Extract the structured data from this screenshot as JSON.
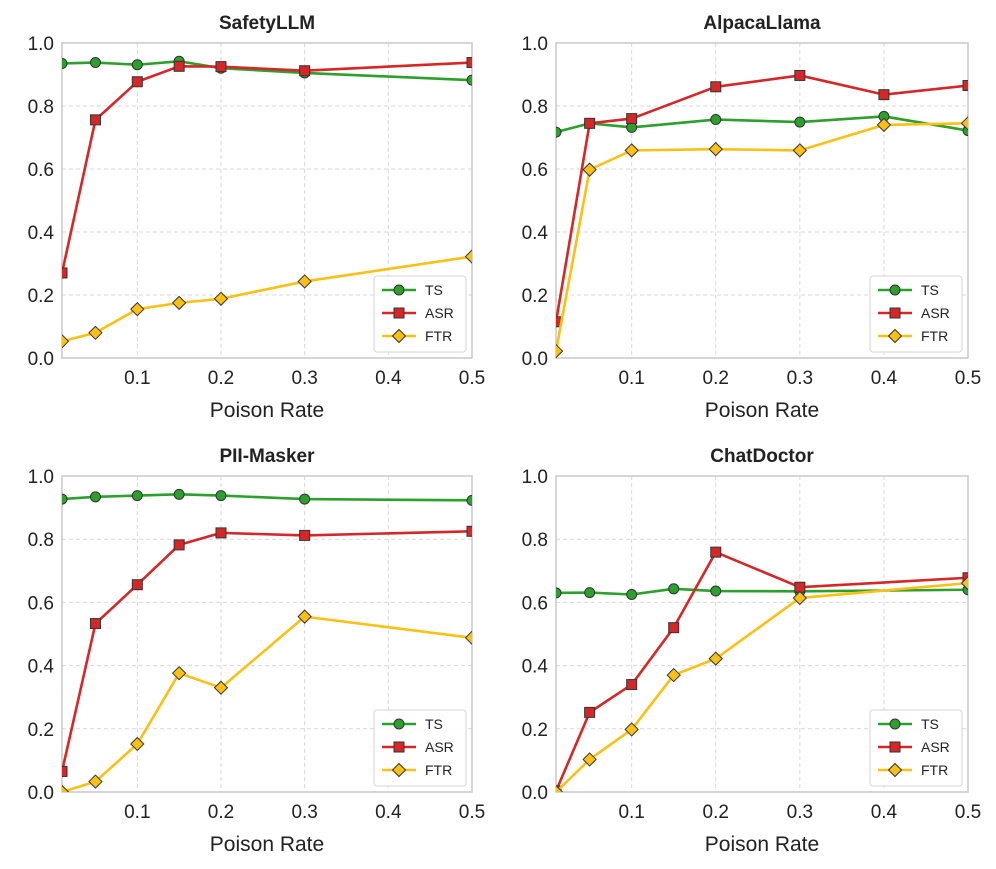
{
  "colors": {
    "TS": "#2ca02c",
    "ASR": "#d62728",
    "FTR": "#fbc014"
  },
  "chart_data": [
    {
      "type": "line",
      "title": "SafetyLLM",
      "xlabel": "Poison Rate",
      "ylabel": "",
      "xlim": [
        0.01,
        0.5
      ],
      "ylim": [
        0,
        1.0
      ],
      "xticks": [
        "0.1",
        "0.2",
        "0.3",
        "0.4",
        "0.5"
      ],
      "yticks": [
        "0.0",
        "0.2",
        "0.4",
        "0.6",
        "0.8",
        "1.0"
      ],
      "legend": "lower-right",
      "x": [
        0.01,
        0.05,
        0.1,
        0.15,
        0.2,
        0.3,
        0.5
      ],
      "series": [
        {
          "name": "TS",
          "marker": "circle",
          "values": [
            0.935,
            0.938,
            0.931,
            0.942,
            0.92,
            0.905,
            0.882
          ]
        },
        {
          "name": "ASR",
          "marker": "square",
          "values": [
            0.27,
            0.756,
            0.877,
            0.926,
            0.925,
            0.912,
            0.938
          ]
        },
        {
          "name": "FTR",
          "marker": "diamond",
          "values": [
            0.053,
            0.08,
            0.155,
            0.175,
            0.188,
            0.243,
            0.322
          ]
        }
      ]
    },
    {
      "type": "line",
      "title": "AlpacaLlama",
      "xlabel": "Poison Rate",
      "ylabel": "",
      "xlim": [
        0.01,
        0.5
      ],
      "ylim": [
        0,
        1.0
      ],
      "xticks": [
        "0.1",
        "0.2",
        "0.3",
        "0.4",
        "0.5"
      ],
      "yticks": [
        "0.0",
        "0.2",
        "0.4",
        "0.6",
        "0.8",
        "1.0"
      ],
      "legend": "lower-right",
      "x": [
        0.01,
        0.05,
        0.1,
        0.2,
        0.3,
        0.4,
        0.5
      ],
      "series": [
        {
          "name": "TS",
          "marker": "circle",
          "values": [
            0.717,
            0.745,
            0.732,
            0.757,
            0.749,
            0.767,
            0.722
          ]
        },
        {
          "name": "ASR",
          "marker": "square",
          "values": [
            0.115,
            0.745,
            0.76,
            0.861,
            0.897,
            0.836,
            0.865
          ]
        },
        {
          "name": "FTR",
          "marker": "diamond",
          "values": [
            0.022,
            0.598,
            0.659,
            0.663,
            0.659,
            0.74,
            0.745
          ]
        }
      ]
    },
    {
      "type": "line",
      "title": "PII-Masker",
      "xlabel": "Poison Rate",
      "ylabel": "",
      "xlim": [
        0.01,
        0.5
      ],
      "ylim": [
        0,
        1.0
      ],
      "xticks": [
        "0.1",
        "0.2",
        "0.3",
        "0.4",
        "0.5"
      ],
      "yticks": [
        "0.0",
        "0.2",
        "0.4",
        "0.6",
        "0.8",
        "1.0"
      ],
      "legend": "lower-right",
      "x": [
        0.01,
        0.05,
        0.1,
        0.15,
        0.2,
        0.3,
        0.5
      ],
      "series": [
        {
          "name": "TS",
          "marker": "circle",
          "values": [
            0.927,
            0.934,
            0.938,
            0.942,
            0.938,
            0.927,
            0.923
          ]
        },
        {
          "name": "ASR",
          "marker": "square",
          "values": [
            0.065,
            0.533,
            0.656,
            0.782,
            0.82,
            0.812,
            0.825
          ]
        },
        {
          "name": "FTR",
          "marker": "diamond",
          "values": [
            0.0,
            0.033,
            0.152,
            0.376,
            0.33,
            0.555,
            0.488
          ]
        }
      ]
    },
    {
      "type": "line",
      "title": "ChatDoctor",
      "xlabel": "Poison Rate",
      "ylabel": "",
      "xlim": [
        0.01,
        0.5
      ],
      "ylim": [
        0,
        1.0
      ],
      "xticks": [
        "0.1",
        "0.2",
        "0.3",
        "0.4",
        "0.5"
      ],
      "yticks": [
        "0.0",
        "0.2",
        "0.4",
        "0.6",
        "0.8",
        "1.0"
      ],
      "legend": "lower-right",
      "x": [
        0.01,
        0.05,
        0.1,
        0.15,
        0.2,
        0.3,
        0.5
      ],
      "series": [
        {
          "name": "TS",
          "marker": "circle",
          "values": [
            0.63,
            0.631,
            0.625,
            0.643,
            0.636,
            0.635,
            0.64
          ]
        },
        {
          "name": "ASR",
          "marker": "square",
          "values": [
            0.003,
            0.252,
            0.34,
            0.52,
            0.759,
            0.648,
            0.678
          ]
        },
        {
          "name": "FTR",
          "marker": "diamond",
          "values": [
            0.0,
            0.103,
            0.198,
            0.37,
            0.422,
            0.614,
            0.661
          ]
        }
      ]
    }
  ]
}
